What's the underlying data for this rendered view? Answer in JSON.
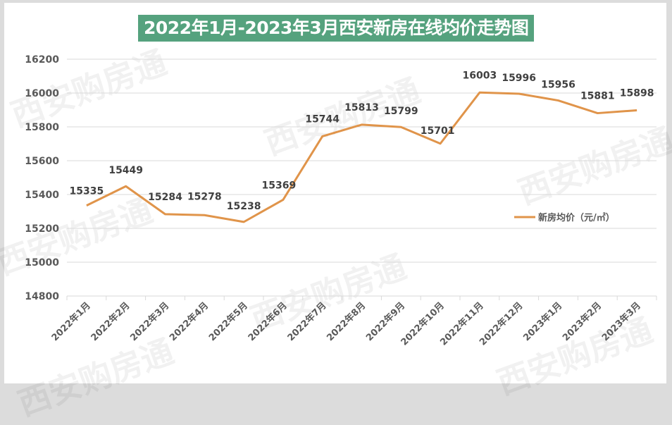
{
  "title": "2022年1月-2023年3月西安新房在线均价走势图",
  "watermark": "西安购房通",
  "colors": {
    "line": "#e0944a",
    "title_bg": "#55a27e",
    "grid": "#d9d9d9",
    "text": "#404040"
  },
  "legend": {
    "label": "新房均价（元/㎡）"
  },
  "y_axis": {
    "ticks": [
      "16200",
      "16000",
      "15800",
      "15600",
      "15400",
      "15200",
      "15000",
      "14800"
    ]
  },
  "chart_data": {
    "type": "line",
    "title": "2022年1月-2023年3月西安新房在线均价走势图",
    "xlabel": "",
    "ylabel": "",
    "ylim": [
      14800,
      16200
    ],
    "yticks": [
      14800,
      15000,
      15200,
      15400,
      15600,
      15800,
      16000,
      16200
    ],
    "grid": true,
    "legend_position": "right-inside",
    "categories": [
      "2022年1月",
      "2022年2月",
      "2022年3月",
      "2022年4月",
      "2022年5月",
      "2022年6月",
      "2022年7月",
      "2022年8月",
      "2022年9月",
      "2022年10月",
      "2022年11月",
      "2022年12月",
      "2023年1月",
      "2023年2月",
      "2023年3月"
    ],
    "series": [
      {
        "name": "新房均价（元/㎡）",
        "values": [
          15335,
          15449,
          15284,
          15278,
          15238,
          15369,
          15744,
          15813,
          15799,
          15701,
          16003,
          15996,
          15956,
          15881,
          15898
        ]
      }
    ]
  }
}
